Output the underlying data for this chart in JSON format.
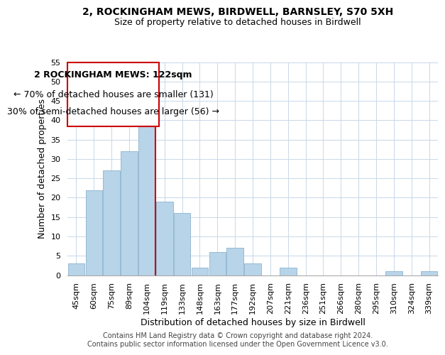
{
  "title": "2, ROCKINGHAM MEWS, BIRDWELL, BARNSLEY, S70 5XH",
  "subtitle": "Size of property relative to detached houses in Birdwell",
  "xlabel": "Distribution of detached houses by size in Birdwell",
  "ylabel": "Number of detached properties",
  "bar_labels": [
    "45sqm",
    "60sqm",
    "75sqm",
    "89sqm",
    "104sqm",
    "119sqm",
    "133sqm",
    "148sqm",
    "163sqm",
    "177sqm",
    "192sqm",
    "207sqm",
    "221sqm",
    "236sqm",
    "251sqm",
    "266sqm",
    "280sqm",
    "295sqm",
    "310sqm",
    "324sqm",
    "339sqm"
  ],
  "bar_values": [
    3,
    22,
    27,
    32,
    46,
    19,
    16,
    2,
    6,
    7,
    3,
    0,
    2,
    0,
    0,
    0,
    0,
    0,
    1,
    0,
    1
  ],
  "bar_color": "#b8d4e8",
  "bar_edge_color": "#8ab4d0",
  "vline_index": 4,
  "vline_color": "#cc0000",
  "ylim": [
    0,
    55
  ],
  "yticks": [
    0,
    5,
    10,
    15,
    20,
    25,
    30,
    35,
    40,
    45,
    50,
    55
  ],
  "annotation_title": "2 ROCKINGHAM MEWS: 122sqm",
  "annotation_line1": "← 70% of detached houses are smaller (131)",
  "annotation_line2": "30% of semi-detached houses are larger (56) →",
  "footer1": "Contains HM Land Registry data © Crown copyright and database right 2024.",
  "footer2": "Contains public sector information licensed under the Open Government Licence v3.0.",
  "title_fontsize": 10,
  "subtitle_fontsize": 9,
  "axis_label_fontsize": 9,
  "tick_fontsize": 8,
  "annotation_fontsize": 9,
  "footer_fontsize": 7
}
